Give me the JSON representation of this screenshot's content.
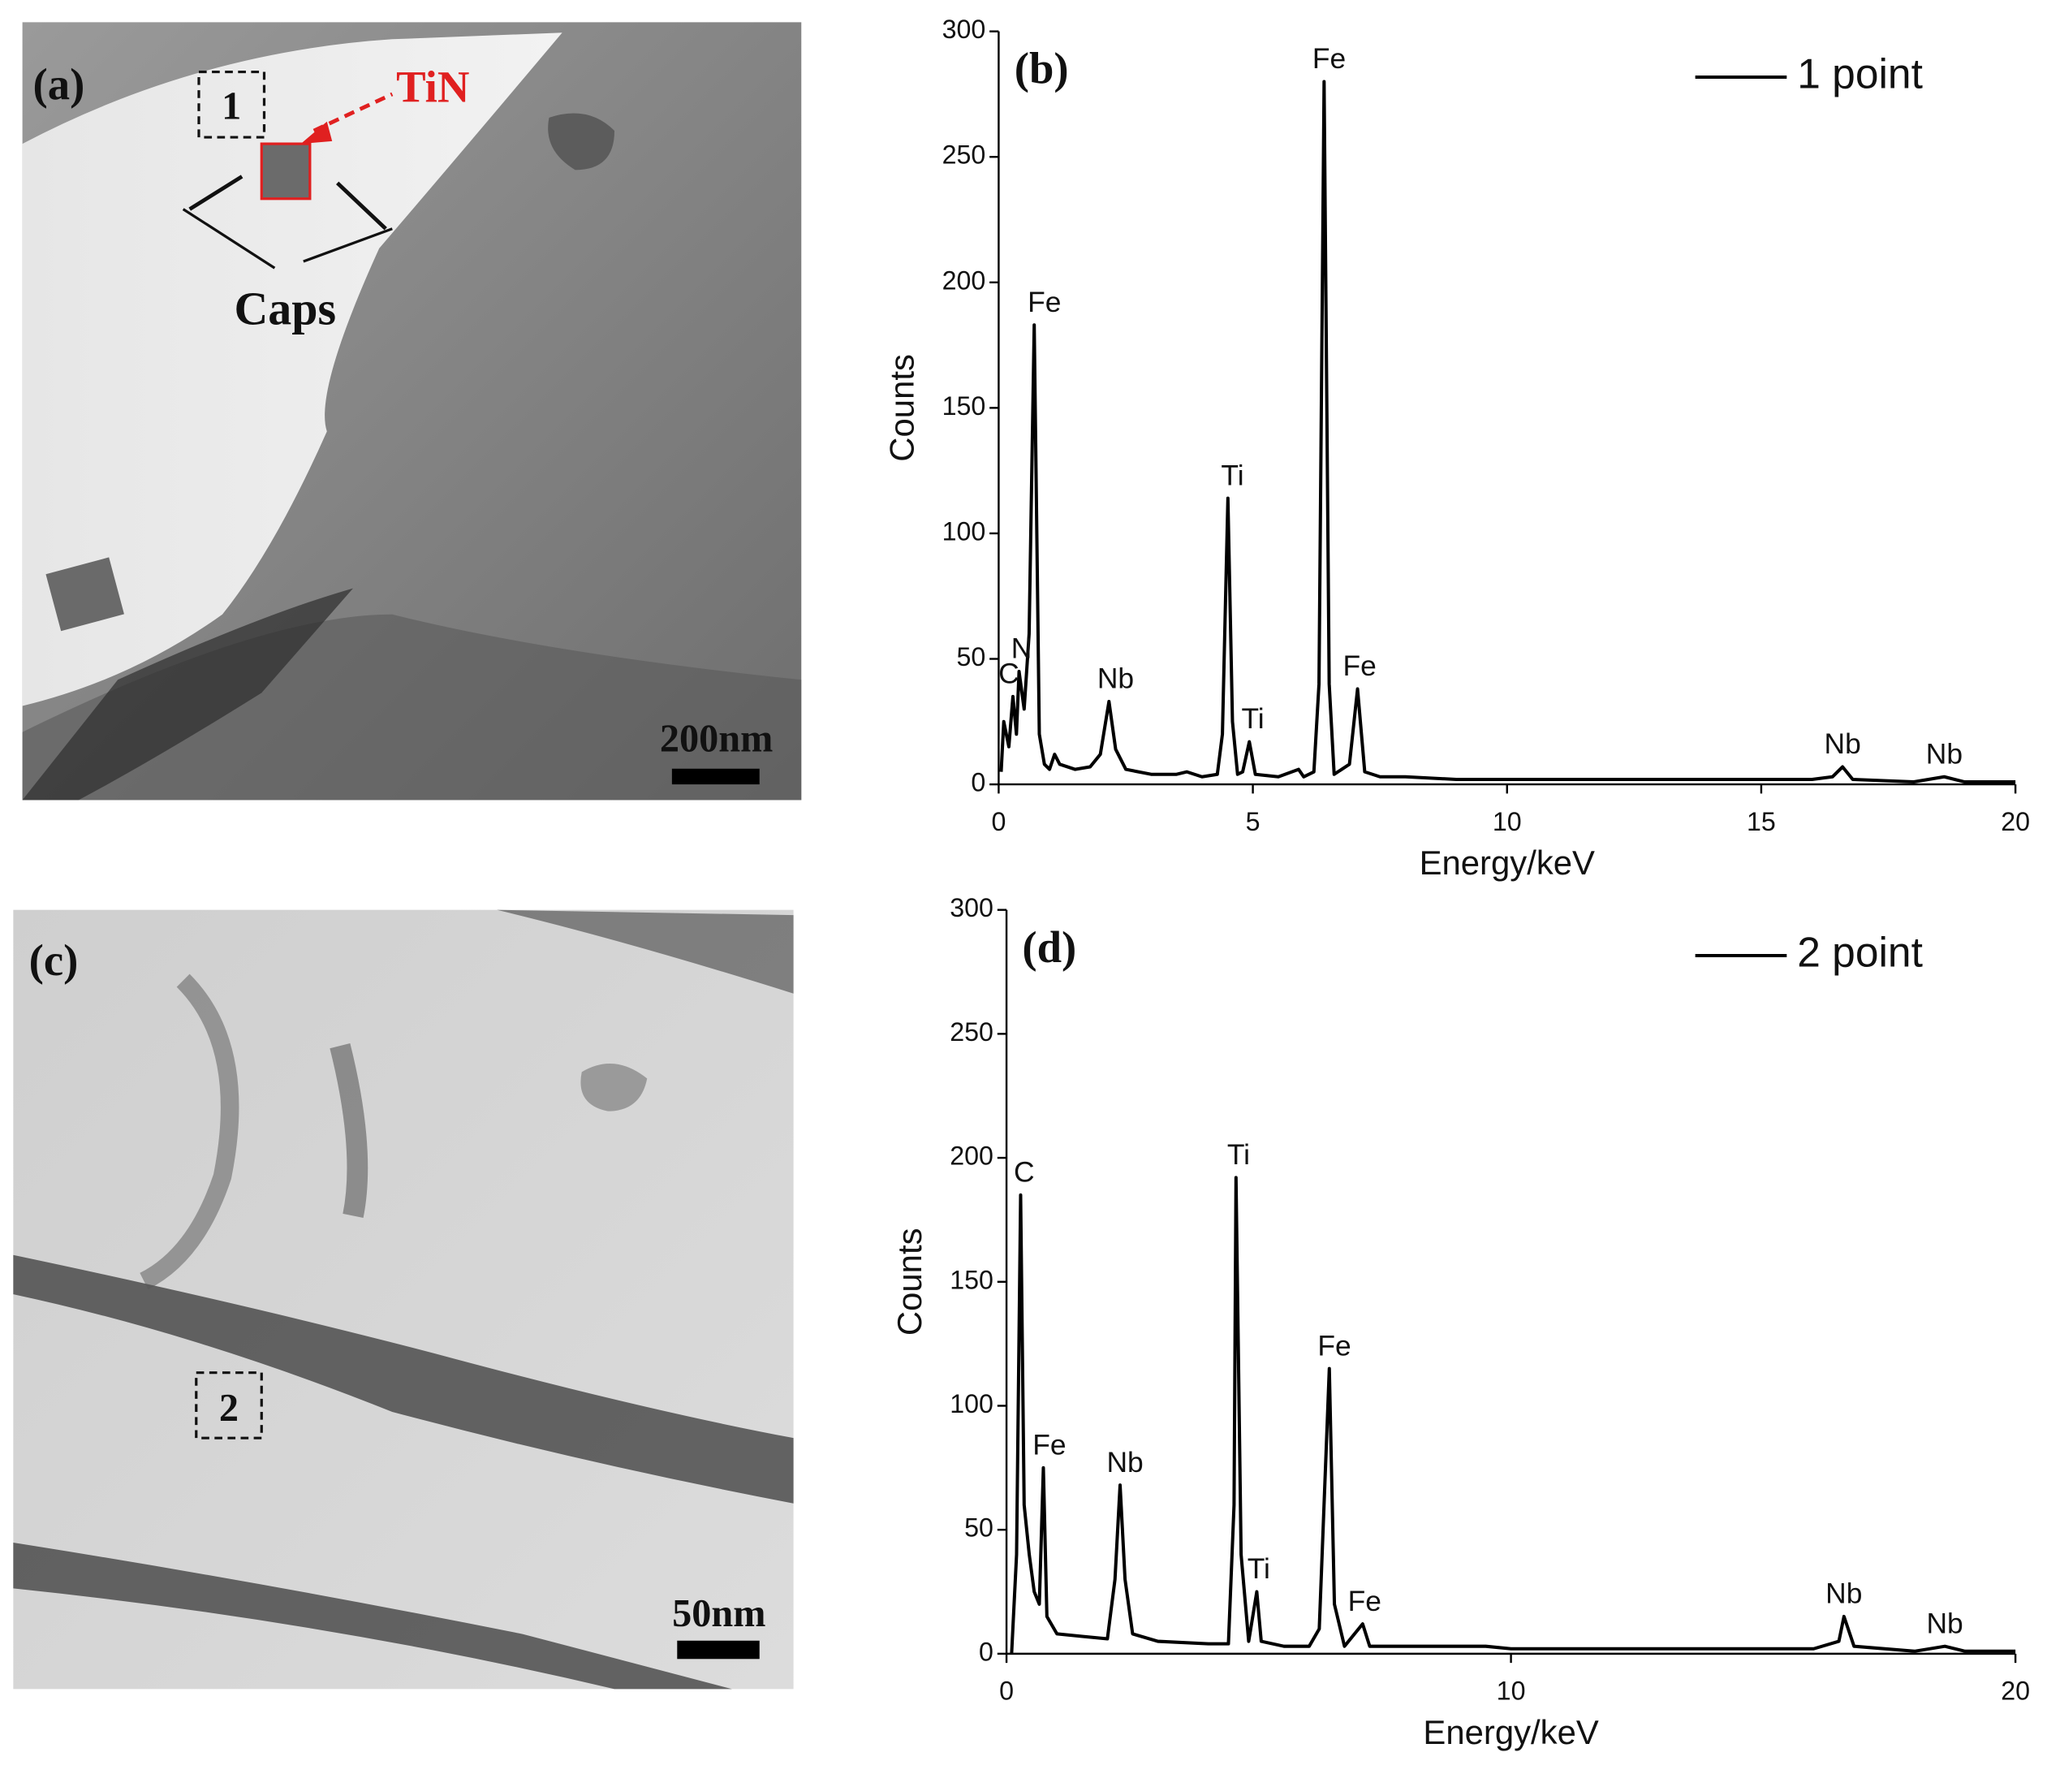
{
  "images": [
    {
      "panel_label": "(a)",
      "box_label": "1",
      "annotation": "TiN",
      "caption": "Caps",
      "scale_bar": "200nm"
    },
    {
      "panel_label": "(c)",
      "box_label": "2",
      "scale_bar": "50nm"
    }
  ],
  "chart_data": [
    {
      "type": "line",
      "panel_label": "(b)",
      "x_label": "Energy/keV",
      "y_label": "Counts",
      "xlim": [
        0,
        20
      ],
      "ylim": [
        0,
        300
      ],
      "xticks": [
        0,
        5,
        10,
        15,
        20
      ],
      "yticks": [
        0,
        50,
        100,
        150,
        200,
        250,
        300
      ],
      "legend": "upper right",
      "x": [
        0.05,
        0.1,
        0.2,
        0.28,
        0.35,
        0.4,
        0.5,
        0.6,
        0.7,
        0.8,
        0.9,
        1.0,
        1.1,
        1.2,
        1.5,
        1.8,
        2.0,
        2.17,
        2.3,
        2.5,
        3.0,
        3.5,
        3.7,
        4.0,
        4.3,
        4.4,
        4.51,
        4.6,
        4.7,
        4.8,
        4.93,
        5.05,
        5.5,
        5.9,
        6.0,
        6.2,
        6.3,
        6.4,
        6.5,
        6.6,
        6.9,
        7.06,
        7.2,
        7.5,
        8,
        9,
        10,
        12,
        14,
        16,
        16.4,
        16.6,
        16.8,
        18,
        18.6,
        19,
        20
      ],
      "series": [
        {
          "name": "1 point",
          "color": "#000000",
          "values": [
            5,
            25,
            15,
            35,
            20,
            45,
            30,
            60,
            183,
            20,
            8,
            6,
            12,
            8,
            6,
            7,
            12,
            33,
            14,
            6,
            4,
            4,
            5,
            3,
            4,
            20,
            114,
            25,
            4,
            5,
            17,
            4,
            3,
            6,
            3,
            5,
            40,
            280,
            40,
            4,
            8,
            38,
            5,
            3,
            3,
            2,
            2,
            2,
            2,
            2,
            3,
            7,
            2,
            1,
            3,
            1,
            1
          ]
        }
      ],
      "peaks": [
        {
          "label": "C",
          "x": 0.2,
          "y": 35
        },
        {
          "label": "N",
          "x": 0.45,
          "y": 45
        },
        {
          "label": "Fe",
          "x": 0.9,
          "y": 183
        },
        {
          "label": "Nb",
          "x": 2.3,
          "y": 33
        },
        {
          "label": "Ti",
          "x": 4.6,
          "y": 114
        },
        {
          "label": "Ti",
          "x": 5.0,
          "y": 17
        },
        {
          "label": "Fe",
          "x": 6.5,
          "y": 280
        },
        {
          "label": "Fe",
          "x": 7.1,
          "y": 38
        },
        {
          "label": "Nb",
          "x": 16.6,
          "y": 7
        },
        {
          "label": "Nb",
          "x": 18.6,
          "y": 3
        }
      ]
    },
    {
      "type": "line",
      "panel_label": "(d)",
      "x_label": "Energy/keV",
      "y_label": "Counts",
      "xlim": [
        0,
        20
      ],
      "ylim": [
        0,
        300
      ],
      "xticks": [
        0,
        10,
        20
      ],
      "yticks": [
        0,
        50,
        100,
        150,
        200,
        250,
        300
      ],
      "legend": "upper right",
      "x": [
        0.1,
        0.2,
        0.28,
        0.35,
        0.45,
        0.55,
        0.65,
        0.73,
        0.8,
        1,
        1.5,
        2.0,
        2.15,
        2.25,
        2.35,
        2.5,
        3,
        4,
        4.4,
        4.51,
        4.55,
        4.65,
        4.8,
        4.96,
        5.05,
        5.5,
        6.0,
        6.2,
        6.4,
        6.5,
        6.7,
        7.06,
        7.2,
        8,
        9.5,
        10,
        13,
        16,
        16.5,
        16.6,
        16.8,
        18,
        18.6,
        19,
        20
      ],
      "series": [
        {
          "name": "2 point",
          "color": "#000000",
          "values": [
            0,
            40,
            185,
            60,
            40,
            25,
            20,
            75,
            15,
            8,
            7,
            6,
            30,
            68,
            30,
            8,
            5,
            4,
            4,
            60,
            192,
            40,
            5,
            25,
            5,
            3,
            3,
            10,
            115,
            20,
            3,
            12,
            3,
            3,
            3,
            2,
            2,
            2,
            5,
            15,
            3,
            1,
            3,
            1,
            1
          ]
        }
      ],
      "peaks": [
        {
          "label": "C",
          "x": 0.35,
          "y": 185
        },
        {
          "label": "Fe",
          "x": 0.85,
          "y": 75
        },
        {
          "label": "Nb",
          "x": 2.35,
          "y": 68
        },
        {
          "label": "Ti",
          "x": 4.6,
          "y": 192
        },
        {
          "label": "Ti",
          "x": 5.0,
          "y": 25
        },
        {
          "label": "Fe",
          "x": 6.5,
          "y": 115
        },
        {
          "label": "Fe",
          "x": 7.1,
          "y": 12
        },
        {
          "label": "Nb",
          "x": 16.6,
          "y": 15
        },
        {
          "label": "Nb",
          "x": 18.6,
          "y": 3
        }
      ]
    }
  ]
}
